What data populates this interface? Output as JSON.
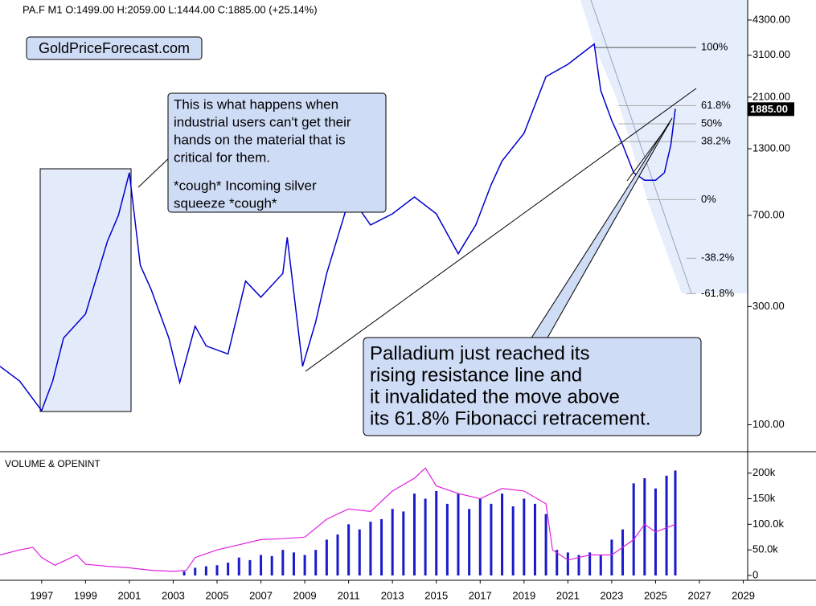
{
  "chart_data": [
    {
      "type": "line",
      "title": "PA.F  M1  O:1499.00  H:2059.00  L:1444.00  C:1885.00  (+25.14%)",
      "watermark": "GoldPriceForecast.com",
      "log_scale": true,
      "color": "#0000cc",
      "x": [
        1995.1,
        1996,
        1997,
        1997.5,
        1998,
        1999,
        2000,
        2000.5,
        2001.0,
        2001.5,
        2002,
        2002.8,
        2003.3,
        2004.0,
        2004.5,
        2005.5,
        2006.3,
        2007,
        2008.0,
        2008.2,
        2008.9,
        2009.5,
        2010,
        2011,
        2011.5,
        2012,
        2013,
        2014,
        2015,
        2016,
        2016.8,
        2017.5,
        2018,
        2019,
        2020,
        2021,
        2022.2,
        2022.5,
        2023,
        2023.5,
        2024,
        2024.5,
        2025,
        2025.4,
        2025.7,
        2025.9
      ],
      "values": [
        172,
        150,
        114,
        150,
        224,
        280,
        550,
        700,
        1040,
        440,
        350,
        224,
        148,
        250,
        208,
        193,
        380,
        327,
        408,
        570,
        172,
        260,
        408,
        800,
        740,
        640,
        710,
        830,
        710,
        490,
        640,
        930,
        1160,
        1500,
        2540,
        2850,
        3440,
        2230,
        1690,
        1350,
        1040,
        970,
        970,
        1040,
        1350,
        1885
      ],
      "xlim": [
        1995.1,
        2029.2
      ],
      "ylim": [
        79,
        5180
      ],
      "yticks": [
        {
          "value": 100,
          "label": "100.00"
        },
        {
          "value": 300,
          "label": "300.00"
        },
        {
          "value": 700,
          "label": "700.00"
        },
        {
          "value": 1300,
          "label": "1300.00"
        },
        {
          "value": 2100,
          "label": "2100.00"
        },
        {
          "value": 3100,
          "label": "3100.00"
        },
        {
          "value": 4300,
          "label": "4300.00"
        }
      ],
      "last_value": {
        "value": 1885,
        "label": "1885.00"
      },
      "fib_levels": [
        {
          "value": 3330,
          "label": "100%",
          "x_start": 2022.2
        },
        {
          "value": 1940,
          "label": "61.8%",
          "x_start": 2023.3
        },
        {
          "value": 1640,
          "label": "50%",
          "x_start": 2023.3
        },
        {
          "value": 1390,
          "label": "38.2%",
          "x_start": 2023.3
        },
        {
          "value": 810,
          "label": "0%",
          "x_start": 2024.6
        },
        {
          "value": 470,
          "label": "-38.2%",
          "x_start": 2026.4
        },
        {
          "value": 338,
          "label": "-61.8%",
          "x_start": 2026.4
        }
      ],
      "annotations": [
        {
          "lines": [
            "This is what happens when",
            "industrial users can't get their",
            "hands on the material that is",
            "critical for them."
          ]
        },
        {
          "lines": [
            "*cough* Incoming silver",
            "squeeze *cough*"
          ]
        },
        {
          "lines": [
            "Palladium just reached its",
            "rising resistance line and",
            "it invalidated the move above",
            "its 61.8% Fibonacci retracement."
          ]
        }
      ]
    },
    {
      "type": "bar",
      "title": "VOLUME & OPENINT",
      "xlim": [
        1995.1,
        2029.2
      ],
      "ylim": [
        -9400,
        234000
      ],
      "xticks": [
        1997,
        1999,
        2001,
        2003,
        2005,
        2007,
        2009,
        2011,
        2013,
        2015,
        2017,
        2019,
        2021,
        2023,
        2025,
        2027,
        2029
      ],
      "yticks": [
        0,
        {
          "value": 50000,
          "label": "50.0k"
        },
        {
          "value": 100000,
          "label": "100.0k"
        },
        {
          "value": 150000,
          "label": "150k"
        },
        {
          "value": 200000,
          "label": "200k"
        }
      ],
      "series": [
        {
          "type": "bar",
          "color": "#1a1acc",
          "x": [
            2003.5,
            2004,
            2004.5,
            2005,
            2005.5,
            2006,
            2006.5,
            2007,
            2007.5,
            2008,
            2008.5,
            2009,
            2009.5,
            2010,
            2010.5,
            2011,
            2011.5,
            2012,
            2012.5,
            2013,
            2013.5,
            2014,
            2014.5,
            2015,
            2015.5,
            2016,
            2016.5,
            2017,
            2017.5,
            2018,
            2018.5,
            2019,
            2019.5,
            2020,
            2020.5,
            2021,
            2021.5,
            2022,
            2022.5,
            2023,
            2023.5,
            2024,
            2024.5,
            2025,
            2025.5,
            2025.9
          ],
          "values": [
            8000,
            15000,
            18000,
            20000,
            25000,
            35000,
            30000,
            40000,
            38000,
            50000,
            45000,
            40000,
            50000,
            70000,
            80000,
            100000,
            90000,
            105000,
            110000,
            130000,
            125000,
            160000,
            150000,
            165000,
            140000,
            160000,
            130000,
            150000,
            140000,
            160000,
            135000,
            150000,
            140000,
            120000,
            50000,
            45000,
            40000,
            45000,
            40000,
            70000,
            90000,
            180000,
            190000,
            170000,
            195000,
            205000
          ]
        },
        {
          "type": "line",
          "color": "#e020e0",
          "x": [
            1995.1,
            1996,
            1996.6,
            1997,
            1997.6,
            1998.6,
            1999,
            2000,
            2001,
            2002,
            2003,
            2003.6,
            2004,
            2005,
            2006,
            2007,
            2008,
            2009,
            2010,
            2011,
            2012,
            2013,
            2014,
            2014.5,
            2015,
            2016,
            2017,
            2018,
            2019,
            2020,
            2020.3,
            2021,
            2022,
            2023,
            2024,
            2024.5,
            2025,
            2025.9
          ],
          "values": [
            40000,
            50000,
            55000,
            35000,
            20000,
            40000,
            22000,
            18000,
            15000,
            10000,
            8000,
            10000,
            35000,
            50000,
            60000,
            70000,
            72000,
            75000,
            110000,
            130000,
            125000,
            165000,
            190000,
            210000,
            175000,
            160000,
            150000,
            170000,
            165000,
            140000,
            50000,
            30000,
            40000,
            40000,
            70000,
            100000,
            85000,
            100000
          ]
        }
      ]
    }
  ]
}
